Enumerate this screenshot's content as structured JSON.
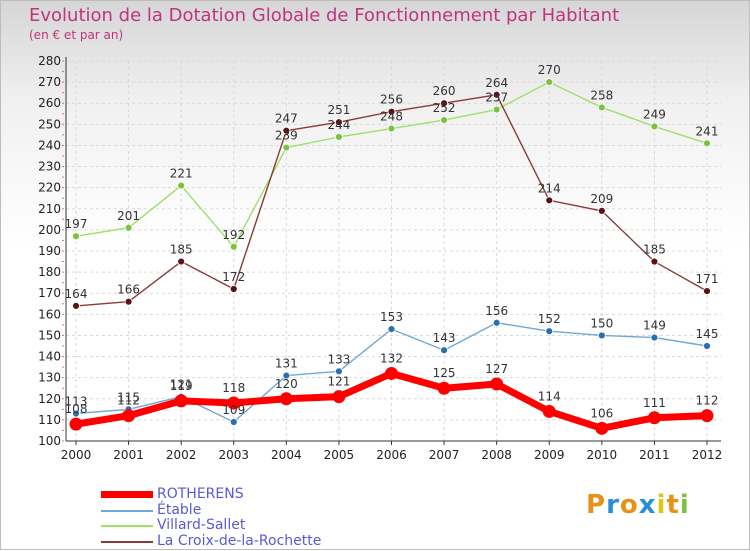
{
  "header": {
    "title": "Evolution de la Dotation Globale de Fonctionnement par Habitant",
    "subtitle": "(en € et par an)"
  },
  "logo": {
    "letters": [
      "P",
      "r",
      "o",
      "x",
      "i",
      "t",
      "i"
    ],
    "colors": [
      "#e8901a",
      "#2a8fd6",
      "#e8901a",
      "#2a8fd6",
      "#d9c81a",
      "#e8901a",
      "#7cc242"
    ]
  },
  "chart_data": {
    "type": "line",
    "title": "Evolution de la Dotation Globale de Fonctionnement par Habitant",
    "subtitle": "(en € et par an)",
    "x": [
      "2000",
      "2001",
      "2002",
      "2003",
      "2004",
      "2005",
      "2006",
      "2007",
      "2008",
      "2009",
      "2010",
      "2011",
      "2012"
    ],
    "yticks": [
      100,
      110,
      120,
      130,
      140,
      150,
      160,
      170,
      180,
      190,
      200,
      210,
      220,
      230,
      240,
      250,
      260,
      270,
      280
    ],
    "ylim": [
      100,
      280
    ],
    "grid": true,
    "legend_position": "bottom-left",
    "series": [
      {
        "name": "ROTHERENS",
        "color": "#ff0000",
        "marker_color": "#ff0000",
        "values": [
          108,
          112,
          119,
          118,
          120,
          121,
          132,
          125,
          127,
          114,
          106,
          111,
          112
        ]
      },
      {
        "name": "Étable",
        "color": "#6fa8d6",
        "marker_color": "#2a6fb4",
        "values": [
          113,
          115,
          121,
          109,
          131,
          133,
          153,
          143,
          156,
          152,
          150,
          149,
          145
        ]
      },
      {
        "name": "Villard-Sallet",
        "color": "#9ee06a",
        "marker_color": "#7cc242",
        "values": [
          197,
          201,
          221,
          192,
          239,
          244,
          248,
          252,
          257,
          270,
          258,
          249,
          241
        ]
      },
      {
        "name": "La Croix-de-la-Rochette",
        "color": "#8b3a3a",
        "marker_color": "#5a1212",
        "values": [
          164,
          166,
          185,
          172,
          247,
          251,
          256,
          260,
          264,
          214,
          209,
          185,
          171
        ]
      }
    ]
  }
}
